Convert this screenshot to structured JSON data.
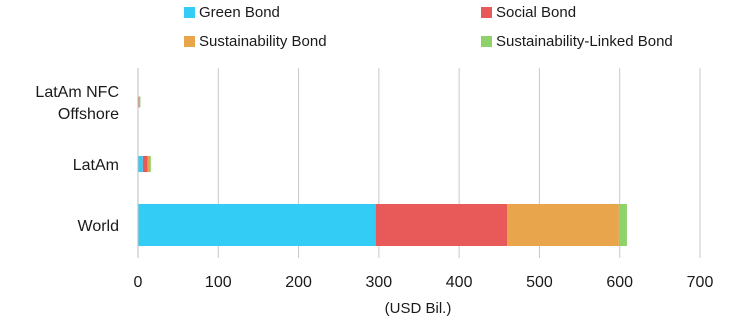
{
  "chart_data": {
    "type": "bar",
    "orientation": "horizontal",
    "stacked": true,
    "title": "",
    "xlabel": "(USD Bil.)",
    "ylabel": "",
    "xlim": [
      0,
      700
    ],
    "xticks": [
      0,
      100,
      200,
      300,
      400,
      500,
      600,
      700
    ],
    "grid": "vertical",
    "legend_position": "top",
    "categories": [
      "LatAm NFC Offshore",
      "LatAm",
      "World"
    ],
    "category_label_lines": [
      [
        "LatAm NFC",
        "Offshore"
      ],
      [
        "LatAm"
      ],
      [
        "World"
      ]
    ],
    "series": [
      {
        "name": "Green Bond",
        "color": "#33ccf5",
        "values": [
          0.8,
          6,
          296
        ]
      },
      {
        "name": "Social Bond",
        "color": "#e85a5a",
        "values": [
          0.4,
          6,
          164
        ]
      },
      {
        "name": "Sustainability Bond",
        "color": "#e8a54c",
        "values": [
          0.6,
          3,
          139
        ]
      },
      {
        "name": "Sustainability-Linked Bond",
        "color": "#8fd16a",
        "values": [
          1.2,
          1,
          10
        ]
      }
    ]
  }
}
